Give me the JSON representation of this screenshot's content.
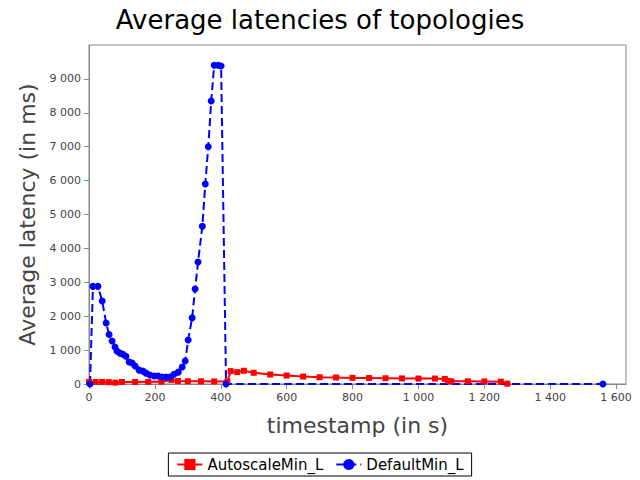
{
  "chart_data": {
    "type": "line",
    "title": "Average latencies of topologies",
    "x_label": "timestamp (in s)",
    "y_label": "Average latency (in ms)",
    "xlim": [
      0,
      1630
    ],
    "xticks": [
      0,
      200,
      400,
      600,
      800,
      {
        "value": 1000,
        "label": "1 000"
      },
      {
        "value": 1200,
        "label": "1 200"
      },
      {
        "value": 1400,
        "label": "1 400"
      },
      {
        "value": 1600,
        "label": "1 600"
      }
    ],
    "ylim": [
      0,
      10000
    ],
    "yticks": [
      0,
      {
        "value": 1000,
        "label": "1 000"
      },
      {
        "value": 2000,
        "label": "2 000"
      },
      {
        "value": 3000,
        "label": "3 000"
      },
      {
        "value": 4000,
        "label": "4 000"
      },
      {
        "value": 5000,
        "label": "5 000"
      },
      {
        "value": 6000,
        "label": "6 000"
      },
      {
        "value": 7000,
        "label": "7 000"
      },
      {
        "value": 8000,
        "label": "8 000"
      },
      {
        "value": 9000,
        "label": "9 000"
      }
    ],
    "grid": false,
    "legend": "bottom",
    "series": [
      {
        "name": "AutoscaleMin_L",
        "color": "#ff0000",
        "marker": "square",
        "line_style": "solid",
        "x": [
          0,
          20,
          40,
          60,
          80,
          100,
          140,
          180,
          220,
          250,
          270,
          300,
          340,
          380,
          420,
          430,
          450,
          470,
          500,
          550,
          600,
          650,
          700,
          750,
          800,
          850,
          900,
          950,
          1000,
          1050,
          1080,
          1090,
          1100,
          1150,
          1200,
          1250,
          1270
        ],
        "values": [
          60,
          60,
          60,
          55,
          40,
          60,
          60,
          65,
          70,
          120,
          90,
          80,
          80,
          75,
          80,
          380,
          350,
          390,
          330,
          280,
          250,
          220,
          200,
          190,
          180,
          175,
          170,
          165,
          160,
          160,
          150,
          90,
          80,
          80,
          75,
          70,
          10
        ]
      },
      {
        "name": "DefaultMin_L",
        "color": "#0000ff",
        "marker": "circle",
        "line_style": "dashed",
        "x": [
          3,
          12,
          27,
          40,
          52,
          61,
          70,
          79,
          85,
          94,
          103,
          112,
          122,
          131,
          140,
          152,
          164,
          173,
          185,
          198,
          210,
          222,
          234,
          246,
          258,
          271,
          283,
          292,
          301,
          313,
          322,
          331,
          344,
          353,
          362,
          371,
          380,
          392,
          401,
          416,
          1560
        ],
        "values": [
          0,
          2880,
          2880,
          2450,
          1800,
          1460,
          1270,
          1090,
          970,
          910,
          880,
          820,
          650,
          620,
          530,
          410,
          380,
          320,
          265,
          235,
          235,
          205,
          205,
          205,
          290,
          350,
          500,
          680,
          1300,
          1950,
          2800,
          3600,
          4650,
          5900,
          7000,
          8350,
          9400,
          9400,
          9380,
          0,
          0
        ]
      }
    ]
  }
}
